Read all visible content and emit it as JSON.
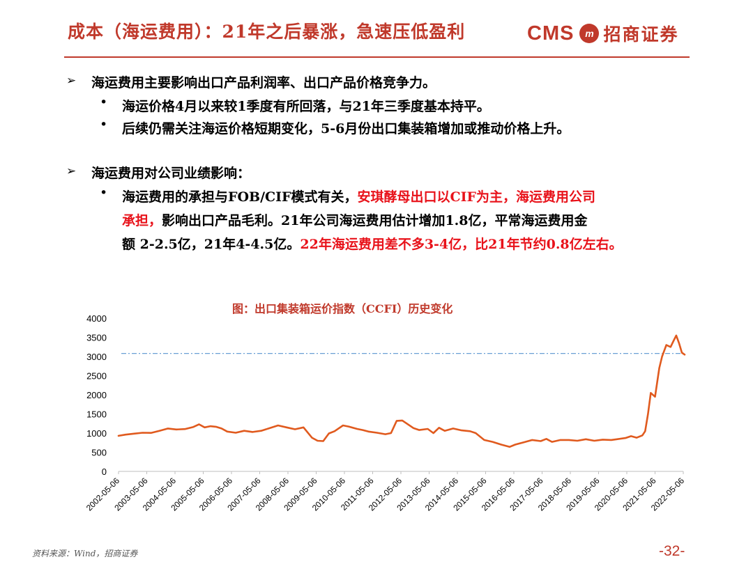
{
  "header": {
    "title": "成本（海运费用）：21年之后暴涨，急速压低盈利",
    "logo_cms": "CMS",
    "logo_mark": "m",
    "logo_cn": "招商证券"
  },
  "body": {
    "point1": "海运费用主要影响出口产品利润率、出口产品价格竞争力。",
    "point1_sub1": "海运价格4月以来较1季度有所回落，与21年三季度基本持平。",
    "point1_sub2": "后续仍需关注海运价格短期变化，5-6月份出口集装箱增加或推动价格上升。",
    "point2": "海运费用对公司业绩影响：",
    "point2_sub1_a": "海运费用的承担与FOB/CIF模式有关，",
    "point2_sub1_b": "安琪酵母出口以CIF为主，海运费用公司",
    "point2_sub1_c": "承担，",
    "point2_sub1_d": "影响出口产品毛利。21年公司海运费用估计增加1.8亿，平常海运费用金",
    "point2_sub1_e": "额 2-2.5亿，21年4-4.5亿。",
    "point2_sub1_f": "22年海运费用差不多3-4亿，比21年节约0.8亿左右。"
  },
  "icons": {
    "bullet_arrow": "arrow-bullet-icon",
    "bullet_dot": "dot-bullet-icon"
  },
  "colors": {
    "accent": "#c0392b",
    "highlight": "#e8121a",
    "series": "#e05a1e",
    "refline": "#6a9fd4"
  },
  "chart_data": {
    "type": "line",
    "title": "图：出口集装箱运价指数（CCFI）历史变化",
    "xlabel": "",
    "ylabel": "",
    "ylim": [
      0,
      4000
    ],
    "yticks": [
      0,
      500,
      1000,
      1500,
      2000,
      2500,
      3000,
      3500,
      4000
    ],
    "xticks": [
      "2002-05-06",
      "2003-05-06",
      "2004-05-06",
      "2005-05-06",
      "2006-05-06",
      "2007-05-06",
      "2008-05-06",
      "2009-05-06",
      "2010-05-06",
      "2011-05-06",
      "2012-05-06",
      "2013-05-06",
      "2014-05-06",
      "2015-05-06",
      "2016-05-06",
      "2017-05-06",
      "2018-05-06",
      "2019-05-06",
      "2020-05-06",
      "2021-05-06",
      "2022-05-06"
    ],
    "reference_line": 3080,
    "grid": false,
    "legend": "none",
    "series": [
      {
        "name": "",
        "x": [
          2002.35,
          2002.6,
          2002.9,
          2003.2,
          2003.5,
          2003.8,
          2004.1,
          2004.4,
          2004.7,
          2005.0,
          2005.2,
          2005.4,
          2005.6,
          2005.8,
          2006.0,
          2006.2,
          2006.5,
          2006.8,
          2007.1,
          2007.4,
          2007.7,
          2008.0,
          2008.3,
          2008.6,
          2008.9,
          2009.2,
          2009.4,
          2009.6,
          2009.8,
          2010.0,
          2010.3,
          2010.5,
          2010.8,
          2011.0,
          2011.2,
          2011.5,
          2011.8,
          2012.0,
          2012.2,
          2012.4,
          2012.6,
          2012.8,
          2013.0,
          2013.3,
          2013.5,
          2013.7,
          2013.9,
          2014.2,
          2014.5,
          2014.8,
          2015.0,
          2015.3,
          2015.6,
          2015.9,
          2016.2,
          2016.4,
          2016.7,
          2017.0,
          2017.3,
          2017.5,
          2017.7,
          2018.0,
          2018.3,
          2018.6,
          2018.9,
          2019.2,
          2019.5,
          2019.8,
          2020.0,
          2020.3,
          2020.5,
          2020.7,
          2020.9,
          2021.0,
          2021.1,
          2021.2,
          2021.35,
          2021.5,
          2021.6,
          2021.75,
          2021.9,
          2022.0,
          2022.1,
          2022.2,
          2022.3,
          2022.4
        ],
        "values": [
          930,
          960,
          985,
          1010,
          1005,
          1060,
          1120,
          1095,
          1105,
          1160,
          1230,
          1150,
          1180,
          1165,
          1120,
          1040,
          1010,
          1060,
          1030,
          1060,
          1130,
          1200,
          1150,
          1100,
          1150,
          880,
          800,
          790,
          990,
          1050,
          1200,
          1170,
          1110,
          1080,
          1040,
          1010,
          970,
          1000,
          1320,
          1330,
          1230,
          1130,
          1080,
          1110,
          1000,
          1140,
          1060,
          1120,
          1070,
          1050,
          1000,
          820,
          770,
          700,
          640,
          700,
          760,
          820,
          790,
          850,
          770,
          820,
          820,
          800,
          840,
          800,
          830,
          820,
          840,
          870,
          920,
          880,
          940,
          1050,
          1500,
          2050,
          1950,
          2700,
          3000,
          3300,
          3250,
          3400,
          3550,
          3350,
          3100,
          3050
        ]
      }
    ]
  }
}
